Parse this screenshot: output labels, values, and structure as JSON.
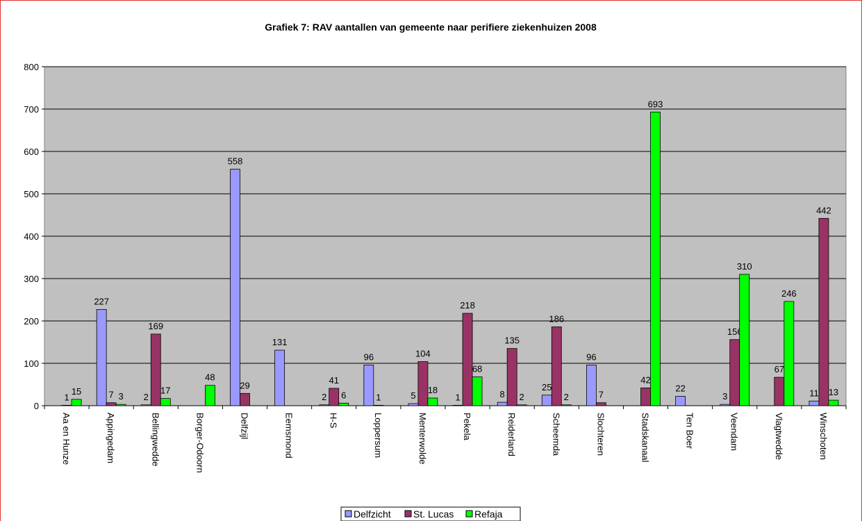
{
  "chart_data": {
    "type": "bar",
    "title": "Grafiek 7: RAV aantallen van gemeente naar perifiere ziekenhuizen 2008",
    "categories": [
      "Aa en Hunze",
      "Appingedam",
      "Bellingwedde",
      "Borger-Odoorn",
      "Delfzijl",
      "Eemsmond",
      "H-S",
      "Loppersum",
      "Menterwolde",
      "Pekela",
      "Reiderland",
      "Scheemda",
      "Slochteren",
      "Stadskanaal",
      "Ten Boer",
      "Veendam",
      "Vlagtwedde",
      "Winschoten"
    ],
    "series": [
      {
        "name": "Delfzicht",
        "color": "#9999ff",
        "values": [
          null,
          227,
          2,
          null,
          558,
          131,
          2,
          96,
          5,
          1,
          8,
          25,
          96,
          null,
          22,
          3,
          null,
          11
        ]
      },
      {
        "name": "St. Lucas",
        "color": "#993366",
        "values": [
          1,
          7,
          169,
          null,
          29,
          null,
          41,
          1,
          104,
          218,
          135,
          186,
          7,
          42,
          null,
          156,
          67,
          442
        ]
      },
      {
        "name": "Refaja",
        "color": "#00ff00",
        "values": [
          15,
          3,
          17,
          48,
          null,
          null,
          6,
          null,
          18,
          68,
          2,
          2,
          null,
          693,
          null,
          310,
          246,
          13
        ]
      }
    ],
    "ylim": [
      0,
      800
    ],
    "yticks": [
      0,
      100,
      200,
      300,
      400,
      500,
      600,
      700,
      800
    ],
    "grid": true,
    "legend": "bottom"
  }
}
